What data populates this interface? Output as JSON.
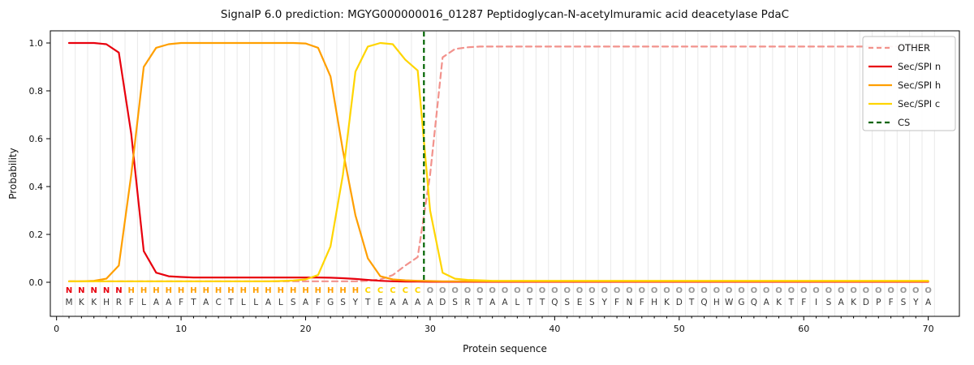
{
  "title": "SignalP 6.0 prediction: MGYG000000016_01287 Peptidoglycan-N-acetylmuramic acid deacetylase PdaC",
  "axes": {
    "xlabel": "Protein sequence",
    "ylabel": "Probability",
    "xticks": [
      0,
      10,
      20,
      30,
      40,
      50,
      60,
      70
    ],
    "yticks": [
      "0.0",
      "0.2",
      "0.4",
      "0.6",
      "0.8",
      "1.0"
    ],
    "xlim": [
      -0.5,
      72.5
    ],
    "ylim": [
      -0.145,
      1.051
    ],
    "grid": "vertical minor gridlines at each residue"
  },
  "legend": {
    "position": "upper right",
    "items": [
      {
        "label": "OTHER",
        "color": "#f2928c",
        "dash": true
      },
      {
        "label": "Sec/SPI n",
        "color": "#e8000d",
        "dash": false
      },
      {
        "label": "Sec/SPI h",
        "color": "#ff9f00",
        "dash": false
      },
      {
        "label": "Sec/SPI c",
        "color": "#ffd500",
        "dash": false
      },
      {
        "label": "CS",
        "color": "#006400",
        "dash": true
      }
    ]
  },
  "sequence": {
    "letters": "MKKHRFLAAFTACTLLALSAFGSYTEAAAADSRTAALTTQSESYFNFHKDTQHWGQAKTFISAKDPFSYA",
    "region_labels": "NNNNNHHHHHHHHHHHHHHHHHHHCCCCCOOOOOOOOOOOOOOOOOOOOOOOOOOOOOOOOOOOOOOOOO",
    "region_colors": {
      "N": "#e8000d",
      "H": "#ff9f00",
      "C": "#ffd500",
      "O": "#999999"
    },
    "letter_color": "#383838"
  },
  "chart_data": {
    "type": "line",
    "title": "SignalP 6.0 prediction: MGYG000000016_01287 Peptidoglycan-N-acetylmuramic acid deacetylase PdaC",
    "xlabel": "Protein sequence",
    "ylabel": "Probability",
    "x_positions": {
      "start": 1,
      "end": 70
    },
    "cs_line_x": 29.5,
    "series": [
      {
        "name": "OTHER",
        "color": "#f2928c",
        "dash": true,
        "values": [
          0.004,
          0.004,
          0.004,
          0.004,
          0.004,
          0.004,
          0.004,
          0.004,
          0.004,
          0.004,
          0.004,
          0.004,
          0.004,
          0.004,
          0.004,
          0.004,
          0.004,
          0.004,
          0.004,
          0.004,
          0.004,
          0.004,
          0.004,
          0.004,
          0.006,
          0.012,
          0.03,
          0.07,
          0.105,
          0.45,
          0.94,
          0.975,
          0.982,
          0.985,
          0.985,
          0.985,
          0.985,
          0.985,
          0.985,
          0.985,
          0.985,
          0.985,
          0.985,
          0.985,
          0.985,
          0.985,
          0.985,
          0.985,
          0.985,
          0.985,
          0.985,
          0.985,
          0.985,
          0.985,
          0.985,
          0.985,
          0.985,
          0.985,
          0.985,
          0.985,
          0.985,
          0.985,
          0.985,
          0.985,
          0.985,
          0.985,
          0.985,
          0.985,
          0.985,
          0.985
        ]
      },
      {
        "name": "Sec/SPI n",
        "color": "#e8000d",
        "dash": false,
        "values": [
          1.0,
          1.0,
          1.0,
          0.995,
          0.96,
          0.62,
          0.13,
          0.04,
          0.025,
          0.022,
          0.02,
          0.02,
          0.02,
          0.02,
          0.02,
          0.02,
          0.02,
          0.02,
          0.02,
          0.02,
          0.02,
          0.019,
          0.017,
          0.014,
          0.01,
          0.006,
          0.004,
          0.003,
          0.003,
          0.002,
          0.002,
          0.002,
          0.002,
          0.002,
          0.002,
          0.002,
          0.002,
          0.002,
          0.002,
          0.002,
          0.002,
          0.002,
          0.002,
          0.002,
          0.002,
          0.002,
          0.002,
          0.002,
          0.002,
          0.002,
          0.002,
          0.002,
          0.002,
          0.002,
          0.002,
          0.002,
          0.002,
          0.002,
          0.002,
          0.002,
          0.002,
          0.002,
          0.002,
          0.002,
          0.002,
          0.002,
          0.002,
          0.002,
          0.002,
          0.002
        ]
      },
      {
        "name": "Sec/SPI h",
        "color": "#ff9f00",
        "dash": false,
        "values": [
          0.004,
          0.004,
          0.006,
          0.015,
          0.07,
          0.45,
          0.9,
          0.98,
          0.995,
          1.0,
          1.0,
          1.0,
          1.0,
          1.0,
          1.0,
          1.0,
          1.0,
          1.0,
          1.0,
          0.998,
          0.98,
          0.86,
          0.55,
          0.28,
          0.1,
          0.025,
          0.012,
          0.008,
          0.006,
          0.005,
          0.004,
          0.004,
          0.004,
          0.004,
          0.004,
          0.004,
          0.004,
          0.004,
          0.004,
          0.004,
          0.004,
          0.004,
          0.004,
          0.004,
          0.004,
          0.004,
          0.004,
          0.004,
          0.004,
          0.004,
          0.004,
          0.004,
          0.004,
          0.004,
          0.004,
          0.004,
          0.004,
          0.004,
          0.004,
          0.004,
          0.004,
          0.004,
          0.004,
          0.004,
          0.004,
          0.004,
          0.004,
          0.004,
          0.004,
          0.004
        ]
      },
      {
        "name": "Sec/SPI c",
        "color": "#ffd500",
        "dash": false,
        "values": [
          0.004,
          0.004,
          0.004,
          0.004,
          0.004,
          0.004,
          0.004,
          0.004,
          0.004,
          0.004,
          0.004,
          0.004,
          0.004,
          0.004,
          0.004,
          0.004,
          0.004,
          0.005,
          0.007,
          0.012,
          0.03,
          0.15,
          0.45,
          0.88,
          0.985,
          1.0,
          0.995,
          0.93,
          0.885,
          0.3,
          0.04,
          0.015,
          0.01,
          0.008,
          0.006,
          0.006,
          0.006,
          0.006,
          0.006,
          0.006,
          0.006,
          0.006,
          0.006,
          0.006,
          0.006,
          0.006,
          0.006,
          0.006,
          0.006,
          0.006,
          0.006,
          0.006,
          0.006,
          0.006,
          0.006,
          0.006,
          0.006,
          0.006,
          0.006,
          0.006,
          0.006,
          0.006,
          0.006,
          0.006,
          0.006,
          0.006,
          0.006,
          0.006,
          0.006,
          0.006
        ]
      }
    ]
  }
}
